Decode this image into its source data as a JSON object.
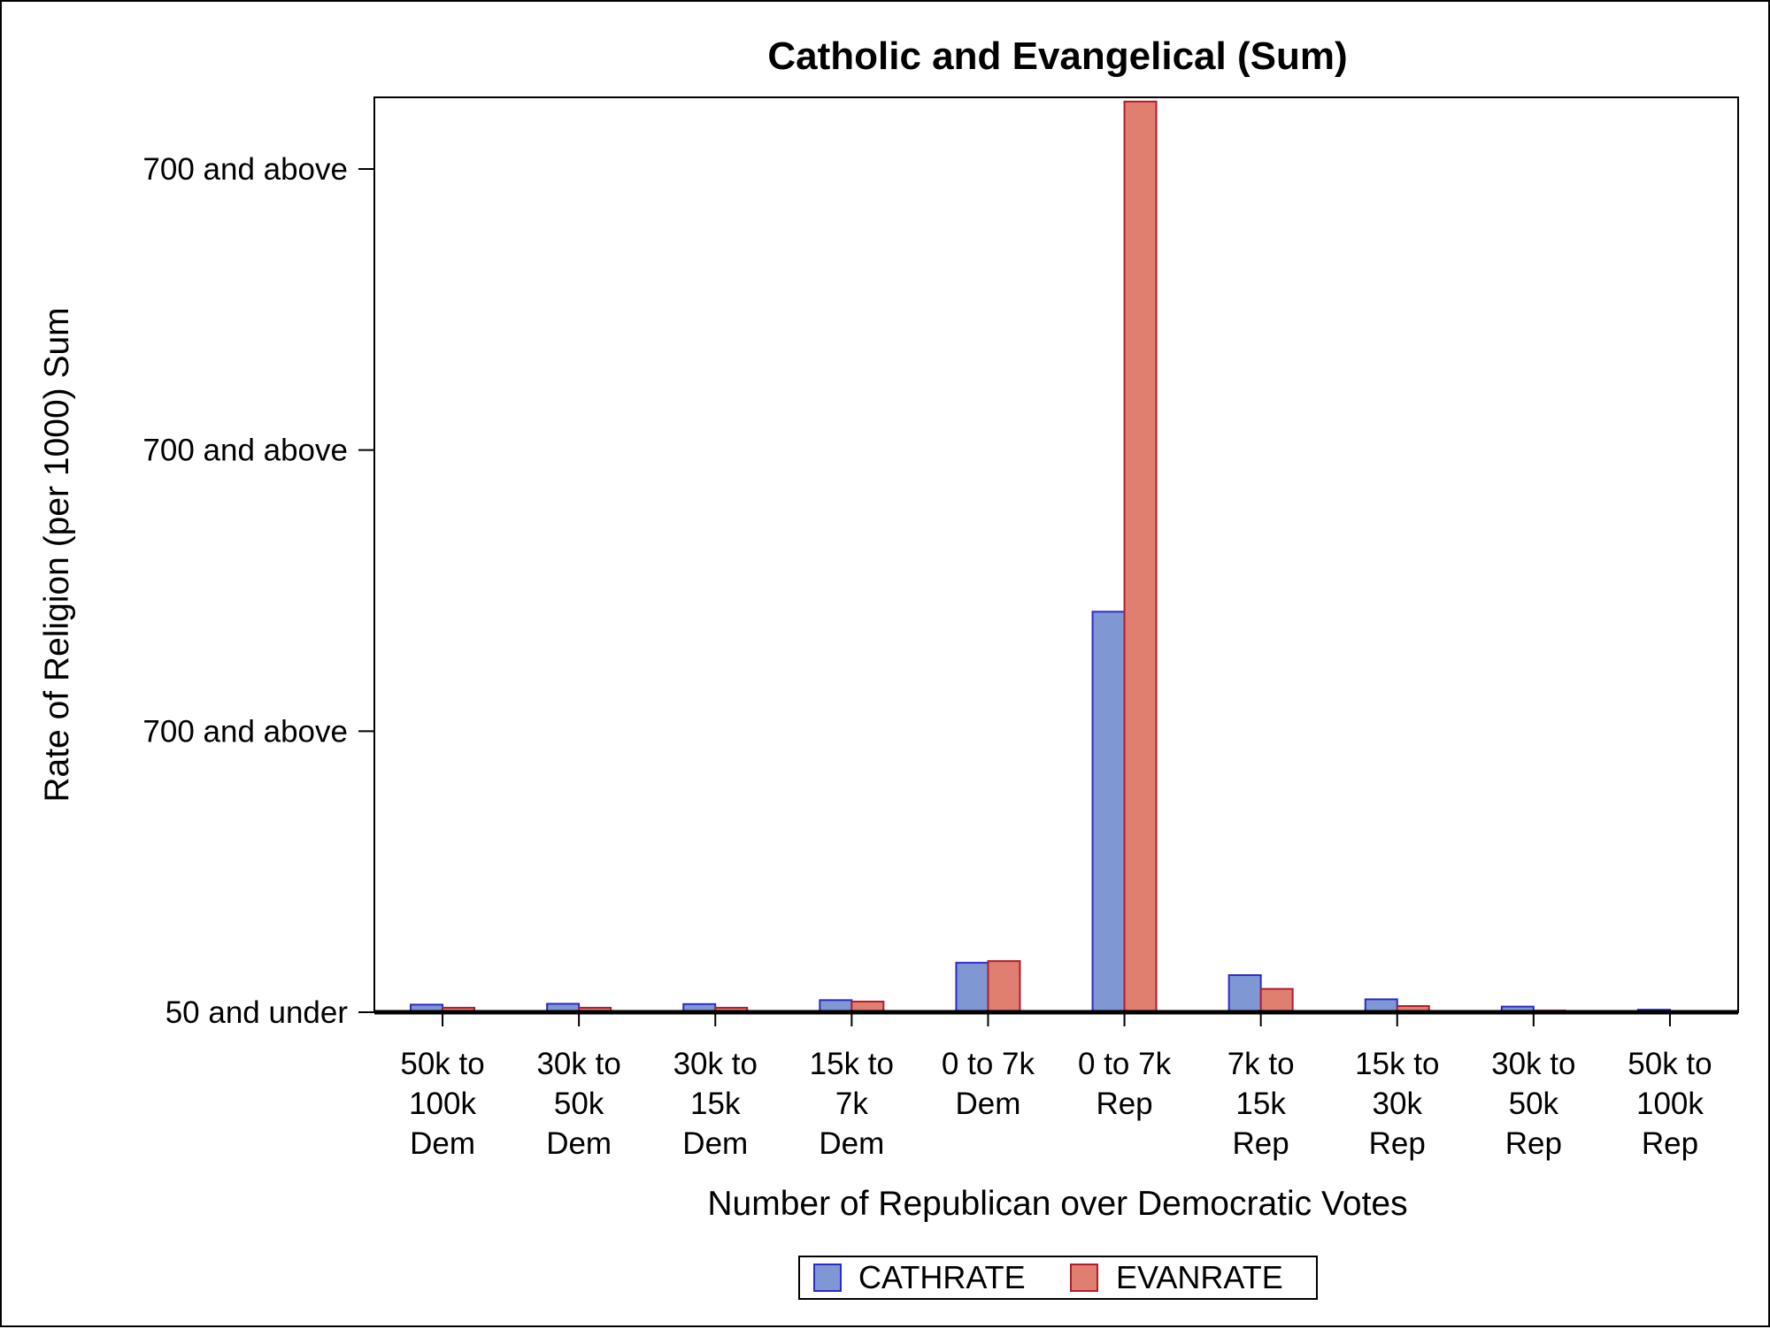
{
  "chart_data": {
    "type": "bar",
    "title": "Catholic and Evangelical (Sum)",
    "xlabel": "Number of Republican over Democratic Votes",
    "ylabel": "Rate of Religion (per 1000) Sum",
    "categories": [
      [
        "50k to",
        "100k",
        "Dem"
      ],
      [
        "30k to",
        "50k",
        "Dem"
      ],
      [
        "30k to",
        "15k",
        "Dem"
      ],
      [
        "15k to",
        "7k",
        "Dem"
      ],
      [
        "0 to 7k",
        "Dem"
      ],
      [
        "0 to 7k",
        "Rep"
      ],
      [
        "7k to",
        "15k",
        "Rep"
      ],
      [
        "15k to",
        "30k",
        "Rep"
      ],
      [
        "30k to",
        "50k",
        "Rep"
      ],
      [
        "50k to",
        "100k",
        "Rep"
      ]
    ],
    "series": [
      {
        "name": "CATHRATE",
        "color": "#7f98d4",
        "edge": "#2b2bc8",
        "values": [
          27,
          30,
          29,
          43,
          176,
          1425,
          132,
          46,
          20,
          9
        ]
      },
      {
        "name": "EVANRATE",
        "color": "#e07e6f",
        "edge": "#b01e2e",
        "values": [
          16,
          16,
          16,
          38,
          182,
          3240,
          83,
          22,
          6,
          2
        ]
      }
    ],
    "yticks": [
      {
        "value": 0,
        "label": "50 and under"
      },
      {
        "value": 1000,
        "label": "700 and above"
      },
      {
        "value": 2000,
        "label": "700 and above"
      },
      {
        "value": 3000,
        "label": "700 and above"
      }
    ],
    "ylim": [
      0,
      3255
    ],
    "legend_position": "bottom-center",
    "grid": false
  }
}
